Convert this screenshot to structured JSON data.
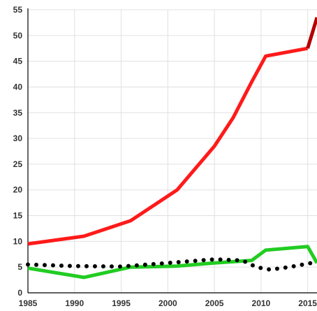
{
  "chart_data": {
    "type": "line",
    "title": "",
    "xlabel": "",
    "ylabel": "",
    "xlim": [
      1985,
      2016
    ],
    "ylim": [
      0,
      55
    ],
    "grid": true,
    "legend": "none",
    "x_ticks": [
      1985,
      1990,
      1995,
      2000,
      2005,
      2010,
      2015
    ],
    "x_tick_labels": [
      "1985",
      "1990",
      "1995",
      "2000",
      "2005",
      "2010",
      "2015"
    ],
    "y_ticks": [
      0,
      5,
      10,
      15,
      20,
      25,
      30,
      35,
      40,
      45,
      50,
      55
    ],
    "y_tick_labels": [
      "0",
      "5",
      "10",
      "15",
      "20",
      "25",
      "30",
      "35",
      "40",
      "45",
      "50",
      "55"
    ],
    "series": [
      {
        "color": "#ff1a1a",
        "style": "solid",
        "points": [
          [
            1985,
            9.5
          ],
          [
            1991,
            11
          ],
          [
            1996,
            14
          ],
          [
            2001,
            20
          ],
          [
            2005,
            28.5
          ],
          [
            2007,
            34
          ],
          [
            2009,
            41
          ],
          [
            2010.5,
            46
          ],
          [
            2015,
            47.5
          ]
        ]
      },
      {
        "color": "#b30000",
        "style": "solid",
        "points": [
          [
            2015,
            47.5
          ],
          [
            2016,
            53.5
          ]
        ]
      },
      {
        "color": "#22cc22",
        "style": "solid",
        "points": [
          [
            1985,
            4.8
          ],
          [
            1991,
            3.0
          ],
          [
            1996,
            5.0
          ],
          [
            2001,
            5.2
          ],
          [
            2005,
            5.8
          ],
          [
            2009,
            6.3
          ],
          [
            2010.5,
            8.3
          ],
          [
            2015,
            9.0
          ],
          [
            2016,
            5.8
          ]
        ]
      },
      {
        "color": "#000000",
        "style": "dotted",
        "points": [
          [
            1985,
            5.5
          ],
          [
            1990,
            5.2
          ],
          [
            1995,
            5.1
          ],
          [
            2000,
            5.8
          ],
          [
            2005,
            6.5
          ],
          [
            2008,
            6.3
          ],
          [
            2009.5,
            5.0
          ],
          [
            2011,
            4.5
          ],
          [
            2013,
            5.0
          ],
          [
            2016,
            6.0
          ]
        ]
      }
    ]
  }
}
